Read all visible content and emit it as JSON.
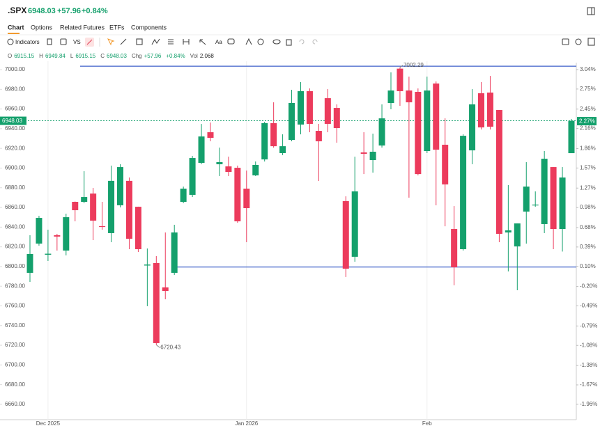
{
  "header": {
    "symbol": ".SPX",
    "price": "6948.03",
    "change": "+57.96",
    "change_pct": "+0.84%"
  },
  "tabs": [
    "Chart",
    "Options",
    "Related Futures",
    "ETFs",
    "Components"
  ],
  "toolbar": {
    "indicators": "Indicators",
    "compare": "VS",
    "font": "Aa"
  },
  "ohlc_row": [
    {
      "label": "O",
      "value": "6915.15"
    },
    {
      "label": "H",
      "value": "6949.84"
    },
    {
      "label": "L",
      "value": "6915.15"
    },
    {
      "label": "C",
      "value": "6948.03"
    },
    {
      "label": "Chg",
      "value": "+57.96"
    },
    {
      "label": "",
      "value": "+0.84%"
    },
    {
      "label": "Vol",
      "value": "2.068"
    }
  ],
  "chart_data": {
    "type": "candlestick",
    "categories": [
      null,
      null,
      "Dec 2025",
      null,
      null,
      null,
      null,
      null,
      null,
      null,
      null,
      null,
      null,
      null,
      null,
      null,
      null,
      null,
      null,
      null,
      null,
      null,
      null,
      null,
      "Jan 2026",
      null,
      null,
      null,
      null,
      null,
      null,
      null,
      null,
      null,
      null,
      null,
      null,
      null,
      null,
      null,
      null,
      null,
      null,
      null,
      "Feb",
      null,
      null,
      null,
      null,
      null,
      null,
      null,
      null,
      null,
      null,
      null,
      null,
      null,
      null,
      null,
      null
    ],
    "open": [
      6793.6,
      6823.3,
      6812,
      6831.8,
      6816.2,
      6865.7,
      6865.7,
      6874.1,
      6841.0,
      6833.9,
      6862.2,
      6887.0,
      6860.7,
      6801,
      6803.5,
      6778.8,
      6793.6,
      6865.7,
      6872.8,
      6905.3,
      6936.4,
      6903.9,
      6901.7,
      6900.3,
      6879.1,
      6892.6,
      6908.8,
      6945.6,
      6915.2,
      6928.6,
      6944.2,
      6978.1,
      6937.8,
      6971.0,
      6961.1,
      6866.4,
      6809.9,
      6915.9,
      6908.1,
      6922.9,
      6966.1,
      7001.0,
      6978.8,
      6977.4,
      6917.3,
      6985.9,
      6923.7,
      6838.1,
      6817.6,
      6918.0,
      6976.0,
      6976.7,
      6959.0,
      6834.6,
      6820.4,
      6855.8,
      6862.1,
      6843.1,
      6901.0,
      6838.1,
      6915.15
    ],
    "high": [
      6831.8,
      6851.5,
      6837.4,
      6833.2,
      6853.7,
      6866,
      6896.8,
      6879.8,
      6865.7,
      6902.5,
      6903.9,
      6890.4,
      6860.8,
      6818.3,
      6810.6,
      6834.6,
      6842.4,
      6881.2,
      6912.3,
      6944.8,
      6946.3,
      6920.8,
      6911.6,
      6902.5,
      6897.5,
      6906.7,
      6947.0,
      6966.8,
      6934.3,
      6979.5,
      6987.3,
      6980.9,
      6944.9,
      6980.2,
      6964.7,
      6871.3,
      6911.6,
      6936.4,
      6935.0,
      6964.7,
      6997.2,
      7002.29,
      6992.9,
      6980.9,
      6992.9,
      6988.0,
      6950.5,
      6861.4,
      6934.3,
      6980.2,
      6987.3,
      6993.6,
      6959.0,
      6882.7,
      6843.8,
      6906.0,
      6876.3,
      6917.3,
      6901.0,
      6901.0,
      6949.84
    ],
    "low": [
      6784.4,
      6821.2,
      6805.6,
      6816.2,
      6811.3,
      6845.9,
      6864.3,
      6826.8,
      6837.4,
      6824.7,
      6860.0,
      6817.6,
      6814.8,
      6759.7,
      6720.43,
      6766.7,
      6791.5,
      6864.3,
      6870.6,
      6903.9,
      6927.2,
      6891.9,
      6891.9,
      6844.5,
      6824.7,
      6891.9,
      6906.7,
      6920.8,
      6913.1,
      6927.2,
      6934.3,
      6936.4,
      6886.9,
      6936.4,
      6925.8,
      6789.4,
      6804.9,
      6893.9,
      6895.4,
      6920.8,
      6959.7,
      6963.2,
      6869.9,
      6892.6,
      6915.2,
      6862.2,
      6840.9,
      6780.9,
      6816.2,
      6903.9,
      6939.2,
      6939.2,
      6824.7,
      6795.0,
      6775.9,
      6823.3,
      6860.7,
      6833.9,
      6817.6,
      6815.2,
      6915.15
    ],
    "close": [
      6812.7,
      6849.4,
      6813,
      6830.4,
      6850.1,
      6857.2,
      6870.6,
      6846.6,
      6840.2,
      6887.0,
      6901.0,
      6828.2,
      6817.6,
      6802,
      6722.2,
      6775.2,
      6834.6,
      6879.1,
      6910.2,
      6932.1,
      6930.7,
      6906.0,
      6896.1,
      6845.9,
      6859.3,
      6903.2,
      6945.6,
      6922.2,
      6922.2,
      6966.1,
      6978.1,
      6944.9,
      6927.2,
      6944.9,
      6940.6,
      6797.8,
      6876.3,
      6914.5,
      6916.6,
      6950.5,
      6978.8,
      6978.1,
      6966.8,
      6893.9,
      6978.8,
      6918.7,
      6883.4,
      6799.2,
      6932.8,
      6964.7,
      6941.3,
      6942.0,
      6833.2,
      6836.7,
      6843.8,
      6881.2,
      6862.9,
      6909.5,
      6838.1,
      6890.4,
      6948.03
    ],
    "up_color": "#14a06c",
    "down_color": "#ec3b5c",
    "ylim": [
      6644.4,
      7007.1
    ],
    "yticks": [
      {
        "value": 6660,
        "label": "6660.00"
      },
      {
        "value": 6680,
        "label": "6680.00"
      },
      {
        "value": 6700,
        "label": "6700.00"
      },
      {
        "value": 6720,
        "label": "6720.00"
      },
      {
        "value": 6740,
        "label": "6740.00"
      },
      {
        "value": 6760,
        "label": "6760.00"
      },
      {
        "value": 6780,
        "label": "6780.00"
      },
      {
        "value": 6800,
        "label": "6800.00"
      },
      {
        "value": 6820,
        "label": "6820.00"
      },
      {
        "value": 6840,
        "label": "6840.00"
      },
      {
        "value": 6860,
        "label": "6860.00"
      },
      {
        "value": 6880,
        "label": "6880.00"
      },
      {
        "value": 6900,
        "label": "6900.00"
      },
      {
        "value": 6920,
        "label": "6920.00"
      },
      {
        "value": 6940,
        "label": "6940.00"
      },
      {
        "value": 6960,
        "label": "6960.00"
      },
      {
        "value": 6980,
        "label": "6980.00"
      },
      {
        "value": 7000,
        "label": "7000.00"
      }
    ],
    "y2lim": [
      -2.19,
      3.144
    ],
    "y2ticks": [
      {
        "value": -1.96,
        "label": "-1.96%"
      },
      {
        "value": -1.67,
        "label": "-1.67%"
      },
      {
        "value": -1.38,
        "label": "-1.38%"
      },
      {
        "value": -1.08,
        "label": "-1.08%"
      },
      {
        "value": -0.79,
        "label": "-0.79%"
      },
      {
        "value": -0.49,
        "label": "-0.49%"
      },
      {
        "value": -0.2,
        "label": "-0.20%"
      },
      {
        "value": 0.1,
        "label": "0.10%"
      },
      {
        "value": 0.39,
        "label": "0.39%"
      },
      {
        "value": 0.68,
        "label": "0.68%"
      },
      {
        "value": 0.98,
        "label": "0.98%"
      },
      {
        "value": 1.27,
        "label": "1.27%"
      },
      {
        "value": 1.57,
        "label": "1.57%"
      },
      {
        "value": 1.86,
        "label": "1.86%"
      },
      {
        "value": 2.16,
        "label": "2.16%"
      },
      {
        "value": 2.45,
        "label": "2.45%"
      },
      {
        "value": 2.75,
        "label": "2.75%"
      },
      {
        "value": 3.04,
        "label": "3.04%"
      }
    ],
    "last": {
      "value": 6948.03,
      "pct": {
        "value": 2.27,
        "label": "2.27%"
      }
    },
    "lines": [
      {
        "value": 7003.5,
        "color": "#3b5fc8"
      },
      {
        "value": 6799.5,
        "color": "#3b5fc8"
      }
    ],
    "grid": true
  }
}
